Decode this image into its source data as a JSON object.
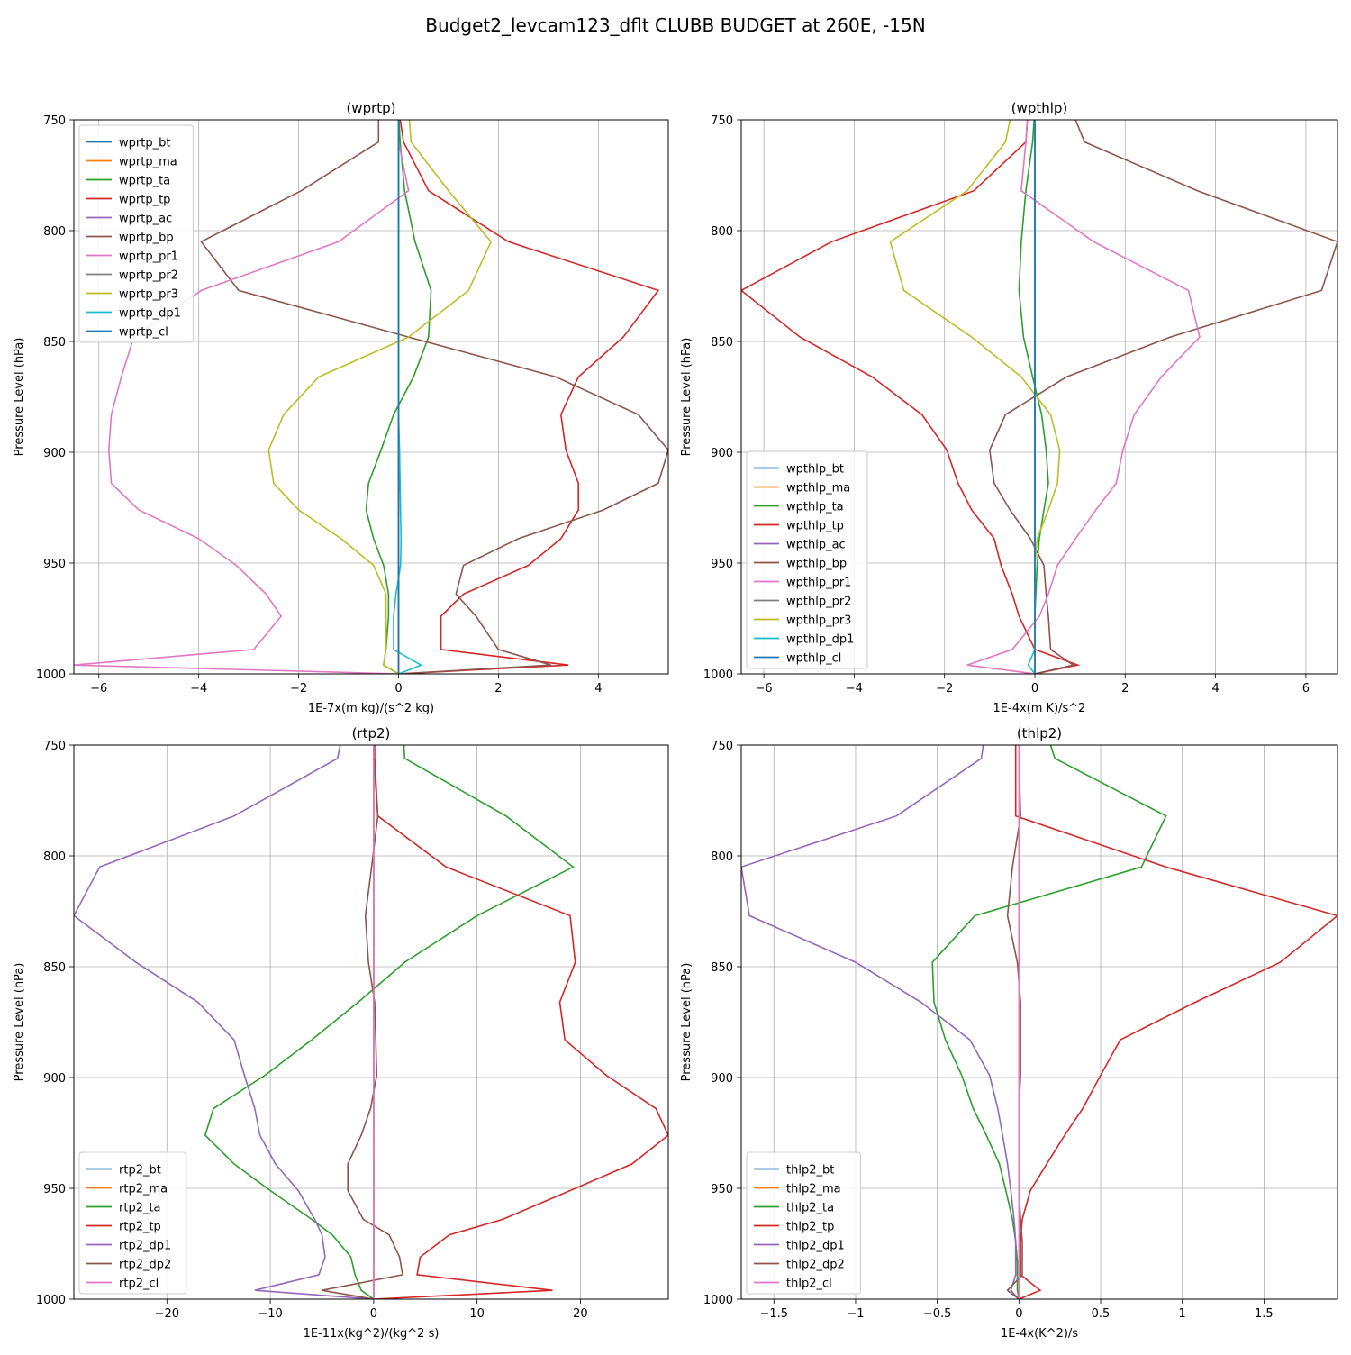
{
  "suptitle": "Budget2_levcam123_dflt CLUBB BUDGET at 260E, -15N",
  "colors": {
    "tab_blue": "#1f77b4",
    "tab_orange": "#ff7f0e",
    "tab_green": "#2ca02c",
    "tab_red": "#d62728",
    "tab_purple": "#9467bd",
    "tab_brown": "#8c564b",
    "tab_pink": "#e377c2",
    "tab_gray": "#7f7f7f",
    "tab_olive": "#bcbd22",
    "tab_cyan": "#17becf"
  },
  "chart_data": [
    {
      "type": "line",
      "title": "(wprtp)",
      "xlabel": "1E-7x(m kg)/(s^2 kg)",
      "ylabel": "Pressure Level (hPa)",
      "xlim": [
        -6.5,
        5.4
      ],
      "ylim": [
        1000,
        750
      ],
      "xticks": [
        -6,
        -4,
        -2,
        0,
        2,
        4
      ],
      "yticks": [
        750,
        800,
        850,
        900,
        950,
        1000
      ],
      "grid": true,
      "legend": "upper left",
      "y": [
        745,
        760,
        782,
        805,
        827,
        848,
        866,
        883,
        899,
        914,
        926,
        939,
        951,
        964,
        974,
        989,
        996,
        1000
      ],
      "series": [
        {
          "name": "wprtp_bt",
          "color": "#1f77b4",
          "values": [
            0,
            0,
            0,
            0,
            0,
            0,
            0,
            0,
            0,
            0,
            0,
            0,
            0,
            0,
            0,
            0,
            0,
            0
          ]
        },
        {
          "name": "wprtp_ma",
          "color": "#ff7f0e",
          "values": [
            0,
            0,
            0,
            0,
            0,
            0,
            0,
            0,
            0,
            0,
            0,
            0,
            0,
            0,
            0,
            0,
            0,
            0
          ]
        },
        {
          "name": "wprtp_ta",
          "color": "#2ca02c",
          "values": [
            0,
            0.03,
            0.12,
            0.33,
            0.65,
            0.6,
            0.3,
            -0.1,
            -0.35,
            -0.6,
            -0.65,
            -0.5,
            -0.3,
            -0.2,
            -0.2,
            -0.25,
            -0.3,
            0
          ]
        },
        {
          "name": "wprtp_tp",
          "color": "#d62728",
          "values": [
            0,
            0.1,
            0.6,
            2.2,
            5.2,
            4.5,
            3.6,
            3.25,
            3.35,
            3.6,
            3.6,
            3.25,
            2.6,
            1.3,
            0.85,
            0.85,
            3.4,
            0
          ]
        },
        {
          "name": "wprtp_ac",
          "color": "#9467bd",
          "values": [
            0,
            0,
            0,
            0,
            0,
            0,
            0,
            0,
            0,
            0,
            0,
            0,
            0,
            0,
            0,
            0,
            0,
            0
          ]
        },
        {
          "name": "wprtp_bp",
          "color": "#8c564b",
          "values": [
            -0.4,
            -0.4,
            -1.95,
            -3.95,
            -3.2,
            0.2,
            3.15,
            4.8,
            5.4,
            5.2,
            4.1,
            2.4,
            1.3,
            1.15,
            1.55,
            2.0,
            3.05,
            0
          ]
        },
        {
          "name": "wprtp_pr1",
          "color": "#e377c2",
          "values": [
            0,
            0,
            0.2,
            -1.2,
            -3.95,
            -5.3,
            -5.55,
            -5.75,
            -5.8,
            -5.75,
            -5.2,
            -4.0,
            -3.25,
            -2.65,
            -2.35,
            -2.9,
            -6.5,
            0
          ]
        },
        {
          "name": "wprtp_pr2",
          "color": "#7f7f7f",
          "values": [
            0,
            0,
            0,
            0,
            0,
            0,
            0,
            0,
            0,
            0,
            0,
            0,
            0,
            0,
            0,
            0,
            0,
            0
          ]
        },
        {
          "name": "wprtp_pr3",
          "color": "#bcbd22",
          "values": [
            0.2,
            0.25,
            1.0,
            1.85,
            1.4,
            0.2,
            -1.6,
            -2.3,
            -2.6,
            -2.5,
            -2.0,
            -1.15,
            -0.5,
            -0.25,
            -0.25,
            -0.25,
            -0.3,
            0
          ]
        },
        {
          "name": "wprtp_dp1",
          "color": "#17becf",
          "values": [
            0,
            0,
            0,
            0,
            0,
            0,
            0,
            0,
            0.02,
            0.03,
            0.04,
            0.05,
            0.04,
            -0.05,
            -0.1,
            -0.1,
            0.45,
            0
          ]
        },
        {
          "name": "wprtp_cl",
          "color": "#1f77b4",
          "values": [
            0,
            0,
            0,
            0,
            0,
            0,
            0,
            0,
            0,
            0,
            0,
            0,
            0,
            0,
            0,
            0,
            0,
            0
          ]
        }
      ]
    },
    {
      "type": "line",
      "title": "(wpthlp)",
      "xlabel": "1E-4x(m K)/s^2",
      "ylabel": "Pressure Level (hPa)",
      "xlim": [
        -6.5,
        6.7
      ],
      "ylim": [
        1000,
        750
      ],
      "xticks": [
        -6,
        -4,
        -2,
        0,
        2,
        4,
        6
      ],
      "yticks": [
        750,
        800,
        850,
        900,
        950,
        1000
      ],
      "grid": true,
      "legend": "lower left",
      "y": [
        745,
        760,
        782,
        805,
        827,
        848,
        866,
        883,
        899,
        914,
        926,
        939,
        951,
        964,
        974,
        989,
        996,
        1000
      ],
      "series": [
        {
          "name": "wpthlp_bt",
          "color": "#1f77b4",
          "values": [
            0,
            0,
            0,
            0,
            0,
            0,
            0,
            0,
            0,
            0,
            0,
            0,
            0,
            0,
            0,
            0,
            0,
            0
          ]
        },
        {
          "name": "wpthlp_ma",
          "color": "#ff7f0e",
          "values": [
            0,
            0,
            0,
            0,
            0,
            0,
            0,
            0,
            0,
            0,
            0,
            0,
            0,
            0,
            0,
            0,
            0,
            0
          ]
        },
        {
          "name": "wpthlp_ta",
          "color": "#2ca02c",
          "values": [
            0,
            -0.05,
            -0.2,
            -0.3,
            -0.35,
            -0.25,
            -0.05,
            0.15,
            0.25,
            0.3,
            0.2,
            0.1,
            0.05,
            0.02,
            0,
            0,
            0,
            0
          ]
        },
        {
          "name": "wpthlp_tp",
          "color": "#d62728",
          "values": [
            -0.15,
            -0.2,
            -1.35,
            -4.5,
            -6.5,
            -5.2,
            -3.6,
            -2.5,
            -1.95,
            -1.7,
            -1.4,
            -0.9,
            -0.75,
            -0.5,
            -0.35,
            0,
            0.95,
            0
          ]
        },
        {
          "name": "wpthlp_ac",
          "color": "#9467bd",
          "values": [
            0,
            0,
            0,
            0,
            0,
            0,
            0,
            0,
            0,
            0,
            0,
            0,
            0,
            0,
            0,
            0,
            0,
            0
          ]
        },
        {
          "name": "wpthlp_bp",
          "color": "#8c564b",
          "values": [
            0.8,
            1.1,
            3.6,
            6.7,
            6.35,
            3.0,
            0.7,
            -0.65,
            -1.0,
            -0.9,
            -0.55,
            -0.1,
            0.2,
            0.25,
            0.3,
            0.35,
            0.85,
            0
          ]
        },
        {
          "name": "wpthlp_pr1",
          "color": "#e377c2",
          "values": [
            -0.15,
            -0.2,
            -0.3,
            1.3,
            3.4,
            3.65,
            2.8,
            2.2,
            1.95,
            1.8,
            1.35,
            0.9,
            0.5,
            0.3,
            0.1,
            -0.5,
            -1.5,
            0
          ]
        },
        {
          "name": "wpthlp_pr2",
          "color": "#7f7f7f",
          "values": [
            0,
            0,
            0,
            0,
            0,
            0,
            0,
            0,
            0,
            0,
            0,
            0,
            0,
            0,
            0,
            0,
            0,
            0
          ]
        },
        {
          "name": "wpthlp_pr3",
          "color": "#bcbd22",
          "values": [
            -0.5,
            -0.65,
            -1.5,
            -3.2,
            -2.9,
            -1.4,
            -0.3,
            0.35,
            0.55,
            0.5,
            0.3,
            0.05,
            0,
            0,
            0,
            0,
            0,
            0
          ]
        },
        {
          "name": "wpthlp_dp1",
          "color": "#17becf",
          "values": [
            0,
            0,
            0,
            0,
            0,
            0,
            0,
            0,
            0,
            0,
            0,
            0,
            0,
            0,
            0,
            0,
            -0.15,
            0
          ]
        },
        {
          "name": "wpthlp_cl",
          "color": "#1f77b4",
          "values": [
            0,
            0,
            0,
            0,
            0,
            0,
            0,
            0,
            0,
            0,
            0,
            0,
            0,
            0,
            0,
            0,
            0,
            0
          ]
        }
      ]
    },
    {
      "type": "line",
      "title": "(rtp2)",
      "xlabel": "1E-11x(kg^2)/(kg^2 s)",
      "ylabel": "Pressure Level (hPa)",
      "xlim": [
        -29,
        28.5
      ],
      "ylim": [
        1000,
        750
      ],
      "xticks": [
        -20,
        -10,
        0,
        10,
        20
      ],
      "yticks": [
        750,
        800,
        850,
        900,
        950,
        1000
      ],
      "grid": true,
      "legend": "lower left",
      "y": [
        740,
        756,
        782,
        805,
        827,
        848,
        866,
        883,
        899,
        914,
        926,
        939,
        951,
        964,
        971,
        981,
        989,
        996,
        1000
      ],
      "series": [
        {
          "name": "rtp2_bt",
          "color": "#1f77b4",
          "values": [
            0,
            0,
            0,
            0,
            0,
            0,
            0,
            0,
            0,
            0,
            0,
            0,
            0,
            0,
            0,
            0,
            0,
            0,
            0
          ]
        },
        {
          "name": "rtp2_ma",
          "color": "#ff7f0e",
          "values": [
            0,
            0,
            0,
            0,
            0,
            0,
            0,
            0,
            0,
            0,
            0,
            0,
            0,
            0,
            0,
            0,
            0,
            0,
            0
          ]
        },
        {
          "name": "rtp2_ta",
          "color": "#2ca02c",
          "values": [
            2.8,
            3.0,
            12.8,
            19.3,
            10.0,
            3.0,
            -1.5,
            -6.0,
            -10.5,
            -15.5,
            -16.3,
            -13.5,
            -10.0,
            -6.0,
            -4.0,
            -2.2,
            -1.8,
            -1.2,
            0
          ]
        },
        {
          "name": "rtp2_tp",
          "color": "#d62728",
          "values": [
            0.1,
            0.1,
            0.4,
            7.0,
            19.0,
            19.5,
            18.0,
            18.5,
            22.5,
            27.3,
            28.5,
            25.0,
            19.0,
            12.5,
            7.3,
            4.5,
            4.2,
            17.3,
            0
          ]
        },
        {
          "name": "rtp2_dp1",
          "color": "#9467bd",
          "values": [
            -2.8,
            -3.5,
            -13.5,
            -26.5,
            -29.0,
            -23.0,
            -17.0,
            -13.5,
            -12.5,
            -11.5,
            -11.0,
            -9.5,
            -7.3,
            -5.7,
            -5.0,
            -4.7,
            -5.3,
            -11.5,
            0
          ]
        },
        {
          "name": "rtp2_dp2",
          "color": "#8c564b",
          "values": [
            0,
            0,
            0.4,
            -0.2,
            -0.8,
            -0.5,
            0.1,
            0.2,
            0.3,
            -0.3,
            -1.2,
            -2.5,
            -2.5,
            -1.0,
            1.5,
            2.5,
            2.8,
            -5.0,
            0
          ]
        },
        {
          "name": "rtp2_cl",
          "color": "#e377c2",
          "values": [
            0,
            0,
            0,
            0,
            0,
            0,
            0,
            0,
            0,
            0,
            0,
            0,
            0,
            0,
            0,
            0,
            0,
            0,
            0
          ]
        }
      ]
    },
    {
      "type": "line",
      "title": "(thlp2)",
      "xlabel": "1E-4x(K^2)/s",
      "ylabel": "Pressure Level (hPa)",
      "xlim": [
        -1.7,
        1.95
      ],
      "ylim": [
        1000,
        750
      ],
      "xticks": [
        -1.5,
        -1.0,
        -0.5,
        0.0,
        0.5,
        1.0,
        1.5
      ],
      "yticks": [
        750,
        800,
        850,
        900,
        950,
        1000
      ],
      "grid": true,
      "legend": "lower left",
      "y": [
        740,
        756,
        782,
        805,
        827,
        848,
        866,
        883,
        899,
        914,
        926,
        939,
        951,
        964,
        974,
        983,
        989,
        996,
        1000
      ],
      "series": [
        {
          "name": "thlp2_bt",
          "color": "#1f77b4",
          "values": [
            0,
            0,
            0,
            0,
            0,
            0,
            0,
            0,
            0,
            0,
            0,
            0,
            0,
            0,
            0,
            0,
            0,
            0,
            0
          ]
        },
        {
          "name": "thlp2_ma",
          "color": "#ff7f0e",
          "values": [
            0,
            0,
            0,
            0,
            0,
            0,
            0,
            0,
            0,
            0,
            0,
            0,
            0,
            0,
            0,
            0,
            0,
            0,
            0
          ]
        },
        {
          "name": "thlp2_ta",
          "color": "#2ca02c",
          "values": [
            0.15,
            0.22,
            0.9,
            0.75,
            -0.27,
            -0.53,
            -0.52,
            -0.45,
            -0.35,
            -0.28,
            -0.2,
            -0.12,
            -0.08,
            -0.04,
            -0.02,
            -0.01,
            -0.01,
            -0.01,
            0
          ]
        },
        {
          "name": "thlp2_tp",
          "color": "#d62728",
          "values": [
            -0.02,
            -0.02,
            -0.02,
            0.9,
            1.95,
            1.6,
            1.08,
            0.62,
            0.5,
            0.39,
            0.28,
            0.17,
            0.07,
            0.02,
            0.01,
            0.01,
            0.01,
            0.13,
            0
          ]
        },
        {
          "name": "thlp2_dp1",
          "color": "#9467bd",
          "values": [
            -0.2,
            -0.23,
            -0.75,
            -1.7,
            -1.65,
            -1.0,
            -0.6,
            -0.3,
            -0.18,
            -0.13,
            -0.1,
            -0.07,
            -0.05,
            -0.03,
            -0.02,
            -0.02,
            -0.02,
            -0.05,
            0
          ]
        },
        {
          "name": "thlp2_dp2",
          "color": "#8c564b",
          "values": [
            0,
            0,
            0.01,
            -0.04,
            -0.07,
            -0.01,
            0.01,
            0.01,
            0.01,
            0,
            0,
            0,
            0,
            0.01,
            0.02,
            0.02,
            0.02,
            -0.07,
            0
          ]
        },
        {
          "name": "thlp2_cl",
          "color": "#e377c2",
          "values": [
            0,
            0,
            0,
            0,
            0,
            0,
            0,
            0,
            0,
            0,
            0,
            0,
            0,
            0,
            0,
            0,
            0,
            0,
            0
          ]
        }
      ]
    }
  ]
}
